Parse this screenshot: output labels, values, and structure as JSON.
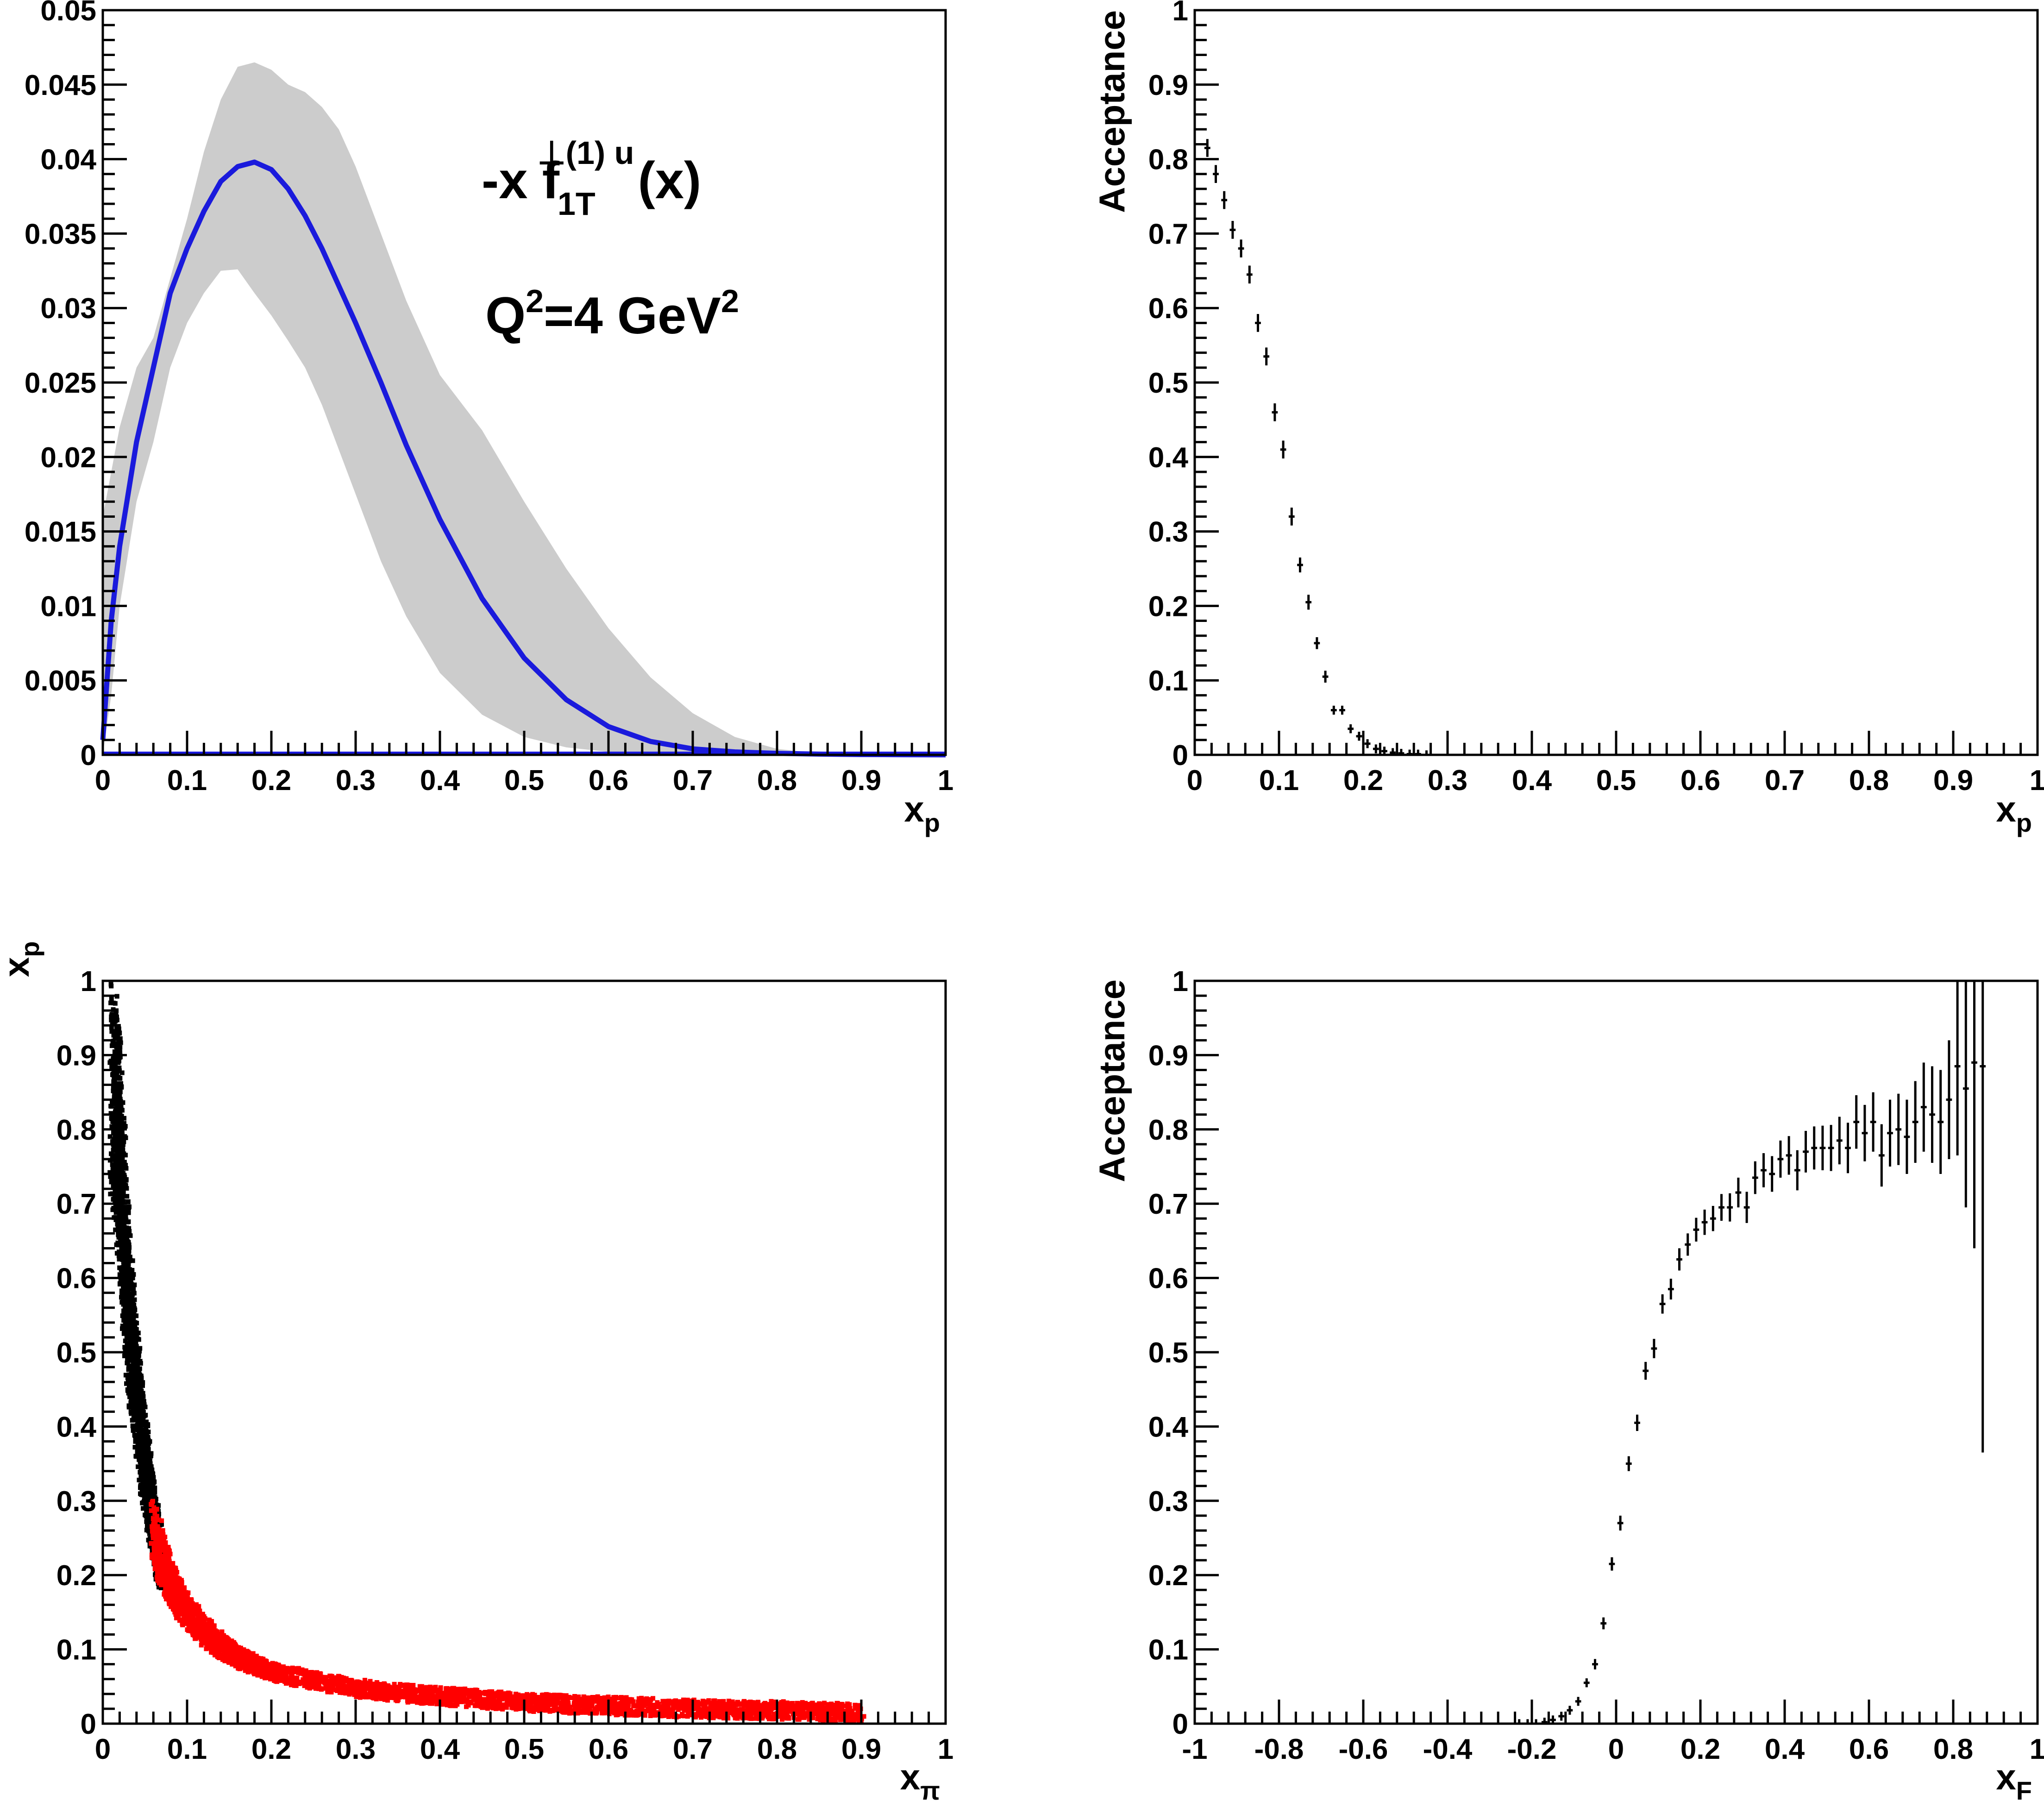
{
  "chart_data": [
    {
      "type": "line",
      "xlabel": "x",
      "xlabel_sub": "p",
      "ylabel": "",
      "xlim": [
        0,
        1
      ],
      "ylim": [
        0,
        0.05
      ],
      "xticks": [
        "0",
        "0.1",
        "0.2",
        "0.3",
        "0.4",
        "0.5",
        "0.6",
        "0.7",
        "0.8",
        "0.9",
        "1"
      ],
      "yticks": [
        "0",
        "0.005",
        "0.01",
        "0.015",
        "0.02",
        "0.025",
        "0.03",
        "0.035",
        "0.04",
        "0.045",
        "0.05"
      ],
      "annotation_formula": {
        "prefix": "-x f",
        "sub": "1T",
        "sup": "⊥(1) u",
        "suffix": "(x)"
      },
      "annotation_q2": {
        "a": "Q",
        "a_sup": "2",
        "b": "=4 GeV",
        "b_sup": "2"
      },
      "line_color": "#1a1adc",
      "band_color": "#cccccc",
      "x": [
        0.0,
        0.01,
        0.02,
        0.04,
        0.06,
        0.08,
        0.1,
        0.12,
        0.14,
        0.16,
        0.18,
        0.2,
        0.22,
        0.24,
        0.26,
        0.28,
        0.3,
        0.33,
        0.36,
        0.4,
        0.45,
        0.5,
        0.55,
        0.6,
        0.65,
        0.7,
        0.75,
        0.8,
        0.85,
        0.9,
        0.95,
        1.0
      ],
      "central": [
        0.001,
        0.009,
        0.014,
        0.021,
        0.026,
        0.031,
        0.034,
        0.0365,
        0.0385,
        0.0395,
        0.0398,
        0.0393,
        0.038,
        0.0362,
        0.034,
        0.0315,
        0.029,
        0.025,
        0.0208,
        0.0158,
        0.0105,
        0.0065,
        0.0037,
        0.0019,
        0.0009,
        0.0004,
        0.0002,
        0.0001,
        5e-05,
        2e-05,
        1e-05,
        0.0
      ],
      "upper": [
        0.016,
        0.019,
        0.022,
        0.026,
        0.028,
        0.032,
        0.036,
        0.0405,
        0.044,
        0.0462,
        0.0465,
        0.046,
        0.045,
        0.0445,
        0.0435,
        0.042,
        0.0395,
        0.035,
        0.0305,
        0.0255,
        0.0218,
        0.017,
        0.0125,
        0.0085,
        0.0052,
        0.0028,
        0.0012,
        0.0004,
        0.0001,
        3e-05,
        1e-05,
        0.0
      ],
      "lower": [
        0.0,
        0.004,
        0.01,
        0.017,
        0.021,
        0.026,
        0.029,
        0.031,
        0.0325,
        0.0326,
        0.031,
        0.0295,
        0.0278,
        0.026,
        0.0235,
        0.0205,
        0.0175,
        0.013,
        0.0093,
        0.0055,
        0.0027,
        0.0012,
        0.0005,
        0.0002,
        0.0001,
        0.0,
        0.0,
        0.0,
        0.0,
        0.0,
        0.0,
        0.0
      ]
    },
    {
      "type": "scatter",
      "xlabel": "x",
      "xlabel_sub": "p",
      "ylabel": "Acceptance",
      "xlim": [
        0,
        1
      ],
      "ylim": [
        0,
        1
      ],
      "xticks": [
        "0",
        "0.1",
        "0.2",
        "0.3",
        "0.4",
        "0.5",
        "0.6",
        "0.7",
        "0.8",
        "0.9",
        "1"
      ],
      "yticks": [
        "0",
        "0.1",
        "0.2",
        "0.3",
        "0.4",
        "0.5",
        "0.6",
        "0.7",
        "0.8",
        "0.9",
        "1"
      ],
      "x": [
        0.015,
        0.025,
        0.035,
        0.045,
        0.055,
        0.065,
        0.075,
        0.085,
        0.095,
        0.105,
        0.115,
        0.125,
        0.135,
        0.145,
        0.155,
        0.165,
        0.175,
        0.185,
        0.195,
        0.205,
        0.215,
        0.225,
        0.235,
        0.245,
        0.255,
        0.265,
        0.275
      ],
      "y": [
        0.815,
        0.78,
        0.745,
        0.705,
        0.68,
        0.645,
        0.58,
        0.535,
        0.46,
        0.41,
        0.32,
        0.255,
        0.205,
        0.15,
        0.105,
        0.06,
        0.06,
        0.035,
        0.025,
        0.015,
        0.008,
        0.005,
        0.003,
        0.002,
        0.001,
        0.001,
        0.0
      ],
      "yerr": [
        0.012,
        0.012,
        0.012,
        0.012,
        0.012,
        0.012,
        0.012,
        0.012,
        0.012,
        0.012,
        0.012,
        0.01,
        0.01,
        0.008,
        0.008,
        0.006,
        0.006,
        0.005,
        0.004,
        0.003,
        0.002,
        0.002,
        0.001,
        0.001,
        0.001,
        0.001,
        0.001
      ]
    },
    {
      "type": "scatter",
      "xlabel": "x",
      "xlabel_sub": "π",
      "ylabel": "x",
      "ylabel_sub": "p",
      "xlim": [
        0,
        1
      ],
      "ylim": [
        0,
        1
      ],
      "xticks": [
        "0",
        "0.1",
        "0.2",
        "0.3",
        "0.4",
        "0.5",
        "0.6",
        "0.7",
        "0.8",
        "0.9",
        "1"
      ],
      "yticks": [
        "0",
        "0.1",
        "0.2",
        "0.3",
        "0.4",
        "0.5",
        "0.6",
        "0.7",
        "0.8",
        "0.9",
        "1"
      ],
      "series": [
        {
          "color": "#000000",
          "x": [
            0.012,
            0.015,
            0.018,
            0.02,
            0.024,
            0.028,
            0.032,
            0.035,
            0.04,
            0.045,
            0.05,
            0.055,
            0.06,
            0.065,
            0.07
          ],
          "y": [
            0.86,
            0.82,
            0.8,
            0.74,
            0.68,
            0.6,
            0.54,
            0.5,
            0.44,
            0.4,
            0.35,
            0.31,
            0.27,
            0.24,
            0.21
          ]
        },
        {
          "color": "#ff0000",
          "x": [
            0.06,
            0.07,
            0.08,
            0.09,
            0.1,
            0.12,
            0.14,
            0.16,
            0.18,
            0.2,
            0.25,
            0.3,
            0.35,
            0.4,
            0.45,
            0.5,
            0.55,
            0.6,
            0.65,
            0.7,
            0.75,
            0.8,
            0.85,
            0.9
          ],
          "y": [
            0.26,
            0.22,
            0.19,
            0.17,
            0.15,
            0.125,
            0.105,
            0.09,
            0.08,
            0.07,
            0.058,
            0.048,
            0.042,
            0.037,
            0.033,
            0.029,
            0.026,
            0.024,
            0.022,
            0.02,
            0.019,
            0.018,
            0.016,
            0.015
          ]
        }
      ]
    },
    {
      "type": "scatter",
      "xlabel": "x",
      "xlabel_sub": "F",
      "ylabel": "Acceptance",
      "xlim": [
        -1,
        1
      ],
      "ylim": [
        0,
        1
      ],
      "xticks": [
        "-1",
        "-0.8",
        "-0.6",
        "-0.4",
        "-0.2",
        "0",
        "0.2",
        "0.4",
        "0.6",
        "0.8",
        "1"
      ],
      "yticks": [
        "0",
        "0.1",
        "0.2",
        "0.3",
        "0.4",
        "0.5",
        "0.6",
        "0.7",
        "0.8",
        "0.9",
        "1"
      ],
      "x": [
        -0.23,
        -0.21,
        -0.19,
        -0.17,
        -0.15,
        -0.13,
        -0.11,
        -0.09,
        -0.07,
        -0.05,
        -0.03,
        -0.01,
        0.01,
        0.03,
        0.05,
        0.07,
        0.09,
        0.11,
        0.13,
        0.15,
        0.17,
        0.19,
        0.21,
        0.23,
        0.25,
        0.27,
        0.29,
        0.31,
        0.33,
        0.35,
        0.37,
        0.39,
        0.41,
        0.43,
        0.45,
        0.47,
        0.49,
        0.51,
        0.53,
        0.55,
        0.57,
        0.59,
        0.61,
        0.63,
        0.65,
        0.67,
        0.69,
        0.71,
        0.73,
        0.75,
        0.77,
        0.79,
        0.81,
        0.83,
        0.85,
        0.87
      ],
      "y": [
        0.0,
        0.0,
        0.0,
        0.002,
        0.005,
        0.01,
        0.018,
        0.03,
        0.055,
        0.08,
        0.135,
        0.215,
        0.27,
        0.35,
        0.405,
        0.475,
        0.505,
        0.565,
        0.585,
        0.625,
        0.645,
        0.665,
        0.675,
        0.68,
        0.695,
        0.695,
        0.715,
        0.695,
        0.735,
        0.745,
        0.74,
        0.76,
        0.765,
        0.745,
        0.77,
        0.775,
        0.775,
        0.775,
        0.785,
        0.775,
        0.81,
        0.795,
        0.81,
        0.765,
        0.795,
        0.8,
        0.79,
        0.81,
        0.83,
        0.82,
        0.81,
        0.84,
        0.885,
        0.855,
        0.89,
        0.885
      ],
      "yerr": [
        0.0,
        0.0,
        0.0,
        0.001,
        0.002,
        0.003,
        0.004,
        0.005,
        0.006,
        0.007,
        0.008,
        0.009,
        0.01,
        0.01,
        0.011,
        0.012,
        0.013,
        0.013,
        0.014,
        0.015,
        0.015,
        0.016,
        0.017,
        0.017,
        0.018,
        0.019,
        0.02,
        0.021,
        0.022,
        0.023,
        0.024,
        0.025,
        0.026,
        0.027,
        0.028,
        0.029,
        0.03,
        0.031,
        0.032,
        0.034,
        0.036,
        0.038,
        0.04,
        0.042,
        0.045,
        0.048,
        0.05,
        0.055,
        0.06,
        0.065,
        0.07,
        0.08,
        0.12,
        0.16,
        0.25,
        0.52
      ]
    }
  ]
}
